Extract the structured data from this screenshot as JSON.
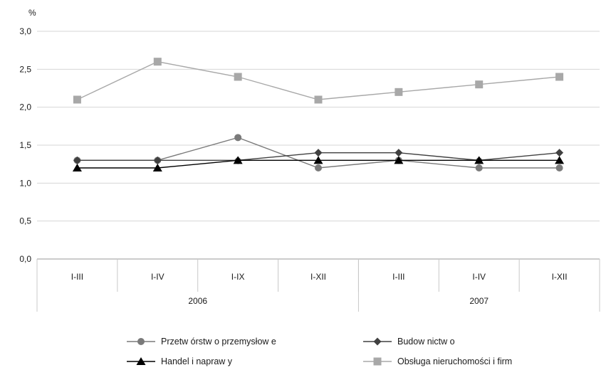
{
  "chart_data": {
    "type": "line",
    "unit_label": "%",
    "ylim": [
      0,
      3.0
    ],
    "y_ticks": [
      "0,0",
      "0,5",
      "1,0",
      "1,5",
      "2,0",
      "2,5",
      "3,0"
    ],
    "y_tick_values": [
      0,
      0.5,
      1.0,
      1.5,
      2.0,
      2.5,
      3.0
    ],
    "categories": [
      "I-III",
      "I-IV",
      "I-IX",
      "I-XII",
      "I-III",
      "I-IV",
      "I-XII"
    ],
    "groups": [
      {
        "label": "2006",
        "count": 4
      },
      {
        "label": "2007",
        "count": 3
      }
    ],
    "grid": true,
    "legend_position": "bottom",
    "series": [
      {
        "name": "Przetw órstw o przemysłow e",
        "marker": "circle",
        "color": "#7a7a7a",
        "values": [
          1.3,
          1.3,
          1.6,
          1.2,
          1.3,
          1.2,
          1.2
        ]
      },
      {
        "name": "Budow nictw o",
        "marker": "diamond",
        "color": "#404040",
        "values": [
          1.3,
          1.3,
          1.3,
          1.4,
          1.4,
          1.3,
          1.4
        ]
      },
      {
        "name": "Handel i napraw y",
        "marker": "triangle",
        "color": "#000000",
        "values": [
          1.2,
          1.2,
          1.3,
          1.3,
          1.3,
          1.3,
          1.3
        ]
      },
      {
        "name": "Obsługa nieruchomości i firm",
        "marker": "square",
        "color": "#a8a8a8",
        "values": [
          2.1,
          2.6,
          2.4,
          2.1,
          2.2,
          2.3,
          2.4
        ]
      }
    ]
  }
}
